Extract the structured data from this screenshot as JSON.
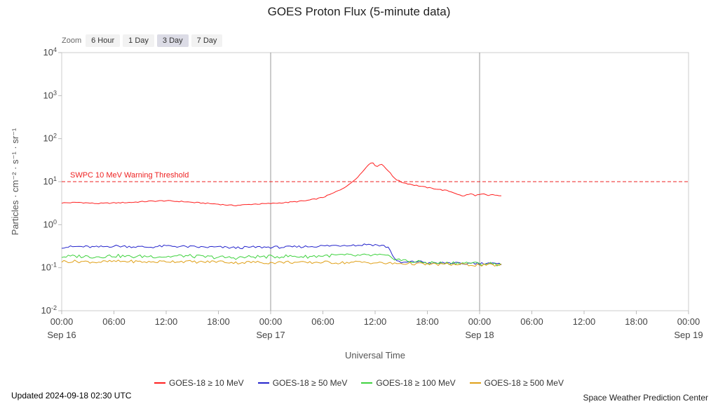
{
  "page": {
    "title": "GOES Proton Flux (5-minute data)",
    "footer_left": "Updated 2024-09-18 02:30 UTC",
    "footer_right": "Space Weather Prediction Center"
  },
  "zoom": {
    "label": "Zoom",
    "options": [
      {
        "label": "6 Hour",
        "selected": false
      },
      {
        "label": "1 Day",
        "selected": false
      },
      {
        "label": "3 Day",
        "selected": true
      },
      {
        "label": "7 Day",
        "selected": false
      }
    ]
  },
  "chart_data": {
    "type": "line",
    "title": "GOES Proton Flux (5-minute data)",
    "xlabel": "Universal Time",
    "ylabel": "Particles · cm⁻² · s⁻¹ · sr⁻¹",
    "x_unit_hours_since": "Sep 16 00:00 UTC",
    "xlim": [
      0,
      72
    ],
    "ylim_log10": [
      -2,
      4
    ],
    "grid": "vertical day boundaries only",
    "legend_position": "bottom center",
    "yticks": [
      {
        "base": "10",
        "exp": "4"
      },
      {
        "base": "10",
        "exp": "3"
      },
      {
        "base": "10",
        "exp": "2"
      },
      {
        "base": "10",
        "exp": "1"
      },
      {
        "base": "10",
        "exp": "0"
      },
      {
        "base": "10",
        "exp": "-1"
      },
      {
        "base": "10",
        "exp": "-2"
      }
    ],
    "xticks": [
      {
        "label": "00:00",
        "day": "Sep 16"
      },
      {
        "label": "06:00"
      },
      {
        "label": "12:00"
      },
      {
        "label": "18:00"
      },
      {
        "label": "00:00",
        "day": "Sep 17"
      },
      {
        "label": "06:00"
      },
      {
        "label": "12:00"
      },
      {
        "label": "18:00"
      },
      {
        "label": "00:00",
        "day": "Sep 18"
      },
      {
        "label": "06:00"
      },
      {
        "label": "12:00"
      },
      {
        "label": "18:00"
      },
      {
        "label": "00:00",
        "day": "Sep 19"
      }
    ],
    "day_lines_hours": [
      24,
      48
    ],
    "threshold": {
      "label": "SWPC 10 MeV Warning Threshold",
      "value": 10,
      "color": "#ee2222"
    },
    "series": [
      {
        "name": "GOES-18 ≥ 10 MeV",
        "color": "#ff2020",
        "points": [
          [
            0,
            3.2
          ],
          [
            1,
            3.25
          ],
          [
            2,
            3.3
          ],
          [
            3,
            3.2
          ],
          [
            4,
            3.1
          ],
          [
            5,
            3.15
          ],
          [
            6,
            3.2
          ],
          [
            7,
            3.25
          ],
          [
            8,
            3.3
          ],
          [
            9,
            3.4
          ],
          [
            10,
            3.5
          ],
          [
            11,
            3.55
          ],
          [
            12,
            3.6
          ],
          [
            13,
            3.5
          ],
          [
            14,
            3.45
          ],
          [
            15,
            3.3
          ],
          [
            16,
            3.2
          ],
          [
            17,
            3.1
          ],
          [
            18,
            3.0
          ],
          [
            19,
            2.85
          ],
          [
            20,
            2.8
          ],
          [
            21,
            2.9
          ],
          [
            22,
            3.0
          ],
          [
            23,
            3.05
          ],
          [
            24,
            3.1
          ],
          [
            25,
            3.2
          ],
          [
            26,
            3.3
          ],
          [
            27,
            3.45
          ],
          [
            28,
            3.6
          ],
          [
            29,
            3.9
          ],
          [
            30,
            4.3
          ],
          [
            31,
            5.2
          ],
          [
            32,
            6.5
          ],
          [
            33,
            8.5
          ],
          [
            34,
            13
          ],
          [
            34.5,
            16.5
          ],
          [
            35,
            22
          ],
          [
            35.3,
            26
          ],
          [
            35.6,
            28.5
          ],
          [
            35.9,
            25
          ],
          [
            36.2,
            22.5
          ],
          [
            36.5,
            24.5
          ],
          [
            36.8,
            25.5
          ],
          [
            37.2,
            21
          ],
          [
            37.6,
            17
          ],
          [
            38,
            13.5
          ],
          [
            38.5,
            11
          ],
          [
            39,
            9.8
          ],
          [
            39.5,
            9.2
          ],
          [
            40,
            8.8
          ],
          [
            40.5,
            8.3
          ],
          [
            41,
            8
          ],
          [
            41.5,
            7.6
          ],
          [
            42,
            7.3
          ],
          [
            42.5,
            7
          ],
          [
            43,
            6.8
          ],
          [
            43.5,
            6.5
          ],
          [
            44,
            6.3
          ],
          [
            44.5,
            6
          ],
          [
            45,
            5.6
          ],
          [
            45.5,
            5.1
          ],
          [
            46,
            4.6
          ],
          [
            46.5,
            4.9
          ],
          [
            47,
            5.2
          ],
          [
            47.5,
            4.8
          ],
          [
            48,
            5
          ],
          [
            48.5,
            5.1
          ],
          [
            49,
            4.7
          ],
          [
            49.5,
            5
          ],
          [
            50,
            4.8
          ],
          [
            50.5,
            4.6
          ]
        ]
      },
      {
        "name": "GOES-18 ≥ 50 MeV",
        "color": "#2525cc",
        "points": [
          [
            0,
            0.3
          ],
          [
            2,
            0.31
          ],
          [
            4,
            0.3
          ],
          [
            6,
            0.32
          ],
          [
            8,
            0.31
          ],
          [
            10,
            0.3
          ],
          [
            12,
            0.32
          ],
          [
            14,
            0.31
          ],
          [
            16,
            0.3
          ],
          [
            18,
            0.3
          ],
          [
            20,
            0.29
          ],
          [
            22,
            0.3
          ],
          [
            24,
            0.3
          ],
          [
            26,
            0.3
          ],
          [
            28,
            0.31
          ],
          [
            30,
            0.32
          ],
          [
            32,
            0.33
          ],
          [
            33,
            0.34
          ],
          [
            34,
            0.33
          ],
          [
            35,
            0.35
          ],
          [
            36,
            0.34
          ],
          [
            37,
            0.32
          ],
          [
            37.5,
            0.3
          ],
          [
            38,
            0.2
          ],
          [
            38.5,
            0.14
          ],
          [
            39,
            0.13
          ],
          [
            40,
            0.135
          ],
          [
            41,
            0.14
          ],
          [
            42,
            0.13
          ],
          [
            43,
            0.125
          ],
          [
            44,
            0.13
          ],
          [
            45,
            0.13
          ],
          [
            46,
            0.12
          ],
          [
            47,
            0.13
          ],
          [
            48,
            0.125
          ],
          [
            49,
            0.13
          ],
          [
            50,
            0.12
          ],
          [
            50.5,
            0.12
          ]
        ]
      },
      {
        "name": "GOES-18 ≥ 100 MeV",
        "color": "#3fd23f",
        "points": [
          [
            0,
            0.18
          ],
          [
            2,
            0.185
          ],
          [
            4,
            0.18
          ],
          [
            6,
            0.19
          ],
          [
            8,
            0.18
          ],
          [
            10,
            0.185
          ],
          [
            12,
            0.18
          ],
          [
            14,
            0.19
          ],
          [
            16,
            0.18
          ],
          [
            18,
            0.175
          ],
          [
            20,
            0.17
          ],
          [
            22,
            0.18
          ],
          [
            24,
            0.18
          ],
          [
            26,
            0.185
          ],
          [
            28,
            0.18
          ],
          [
            30,
            0.19
          ],
          [
            32,
            0.195
          ],
          [
            34,
            0.19
          ],
          [
            36,
            0.195
          ],
          [
            37,
            0.19
          ],
          [
            38,
            0.17
          ],
          [
            39,
            0.15
          ],
          [
            40,
            0.14
          ],
          [
            41,
            0.135
          ],
          [
            42,
            0.13
          ],
          [
            43,
            0.13
          ],
          [
            44,
            0.125
          ],
          [
            45,
            0.13
          ],
          [
            46,
            0.128
          ],
          [
            47,
            0.13
          ],
          [
            48,
            0.122
          ],
          [
            49,
            0.125
          ],
          [
            50,
            0.12
          ],
          [
            50.5,
            0.12
          ]
        ]
      },
      {
        "name": "GOES-18 ≥ 500 MeV",
        "color": "#e0a018",
        "points": [
          [
            0,
            0.14
          ],
          [
            2,
            0.14
          ],
          [
            4,
            0.135
          ],
          [
            6,
            0.14
          ],
          [
            8,
            0.14
          ],
          [
            10,
            0.135
          ],
          [
            12,
            0.14
          ],
          [
            14,
            0.14
          ],
          [
            16,
            0.135
          ],
          [
            18,
            0.14
          ],
          [
            20,
            0.13
          ],
          [
            22,
            0.135
          ],
          [
            24,
            0.13
          ],
          [
            26,
            0.135
          ],
          [
            28,
            0.13
          ],
          [
            30,
            0.135
          ],
          [
            32,
            0.13
          ],
          [
            34,
            0.135
          ],
          [
            36,
            0.13
          ],
          [
            38,
            0.125
          ],
          [
            40,
            0.125
          ],
          [
            42,
            0.12
          ],
          [
            44,
            0.12
          ],
          [
            46,
            0.118
          ],
          [
            48,
            0.115
          ],
          [
            50,
            0.115
          ],
          [
            50.5,
            0.115
          ]
        ]
      }
    ]
  }
}
